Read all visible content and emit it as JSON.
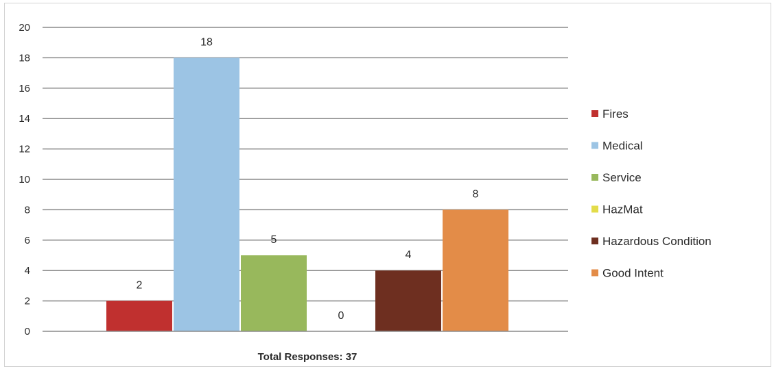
{
  "chart_data": {
    "type": "bar",
    "title": "",
    "xlabel": "Total Responses: 37",
    "ylabel": "",
    "ylim": [
      0,
      20
    ],
    "yticks": [
      0,
      2,
      4,
      6,
      8,
      10,
      12,
      14,
      16,
      18,
      20
    ],
    "grid": true,
    "legend_position": "right",
    "series": [
      {
        "name": "Fires",
        "value": 2,
        "color": "#c0302f"
      },
      {
        "name": "Medical",
        "value": 18,
        "color": "#9cc4e4"
      },
      {
        "name": "Service",
        "value": 5,
        "color": "#98b85c"
      },
      {
        "name": "HazMat",
        "value": 0,
        "color": "#e3dc4a"
      },
      {
        "name": "Hazardous Condition",
        "value": 4,
        "color": "#6e2f20"
      },
      {
        "name": "Good Intent",
        "value": 8,
        "color": "#e38c48"
      }
    ]
  }
}
